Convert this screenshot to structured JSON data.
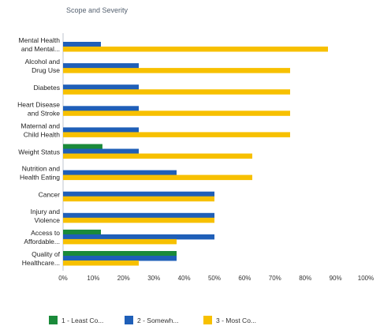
{
  "chart_data": {
    "type": "bar",
    "orientation": "horizontal",
    "title": "Scope and Severity",
    "categories": [
      [
        "Mental Health",
        "and Mental..."
      ],
      [
        "Alcohol and",
        "Drug Use"
      ],
      [
        "Diabetes"
      ],
      [
        "Heart Disease",
        "and Stroke"
      ],
      [
        "Maternal and",
        "Child Health"
      ],
      [
        "Weight Status"
      ],
      [
        "Nutrition and",
        "Health Eating"
      ],
      [
        "Cancer"
      ],
      [
        "Injury and",
        "Violence"
      ],
      [
        "Access to",
        "Affordable..."
      ],
      [
        "Quality of",
        "Healthcare..."
      ]
    ],
    "series": [
      {
        "name": "1 - Least Co...",
        "color": "#1a8a3a",
        "values": [
          0,
          0,
          0,
          0,
          0,
          13,
          0,
          0,
          0,
          12.5,
          37.5
        ]
      },
      {
        "name": "2 - Somewh...",
        "color": "#1f5fb8",
        "values": [
          12.5,
          25,
          25,
          25,
          25,
          25,
          37.5,
          50,
          50,
          50,
          37.5
        ]
      },
      {
        "name": "3 - Most Co...",
        "color": "#f7c000",
        "values": [
          87.5,
          75,
          75,
          75,
          75,
          62.5,
          62.5,
          50,
          50,
          37.5,
          25
        ]
      }
    ],
    "xlim": [
      0,
      100
    ],
    "xticks": [
      "0%",
      "10%",
      "20%",
      "30%",
      "40%",
      "50%",
      "60%",
      "70%",
      "80%",
      "90%",
      "100%"
    ],
    "xlabel": "",
    "ylabel": "",
    "grid": false,
    "legend_position": "bottom"
  }
}
